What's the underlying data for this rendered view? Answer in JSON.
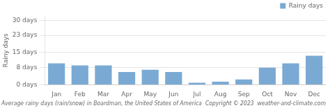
{
  "chart_data": {
    "type": "bar",
    "subtitle": "Average rainy days (rain/snow) in Boardman, the United States of America  Copyright © 2023  weather-and-climate.com",
    "y_label": "Rainy days",
    "categories": [
      "Jan",
      "Feb",
      "Mar",
      "Apr",
      "May",
      "Jun",
      "Jul",
      "Aug",
      "Sep",
      "Oct",
      "Nov",
      "Dec"
    ],
    "series": [
      {
        "name": "Rainy days",
        "color": "#7aaad4",
        "values": [
          10.0,
          9.0,
          9.0,
          6.0,
          7.0,
          6.0,
          1.0,
          1.5,
          2.5,
          8.0,
          10.0,
          13.5
        ]
      }
    ],
    "ylim": [
      0,
      32
    ],
    "yticks": [
      {
        "value": 0,
        "label": "0 days"
      },
      {
        "value": 8,
        "label": "8 days"
      },
      {
        "value": 15,
        "label": "15 days"
      },
      {
        "value": 23,
        "label": "23 days"
      },
      {
        "value": 30,
        "label": "30 days"
      }
    ],
    "grid": true,
    "legend": "upper right"
  }
}
